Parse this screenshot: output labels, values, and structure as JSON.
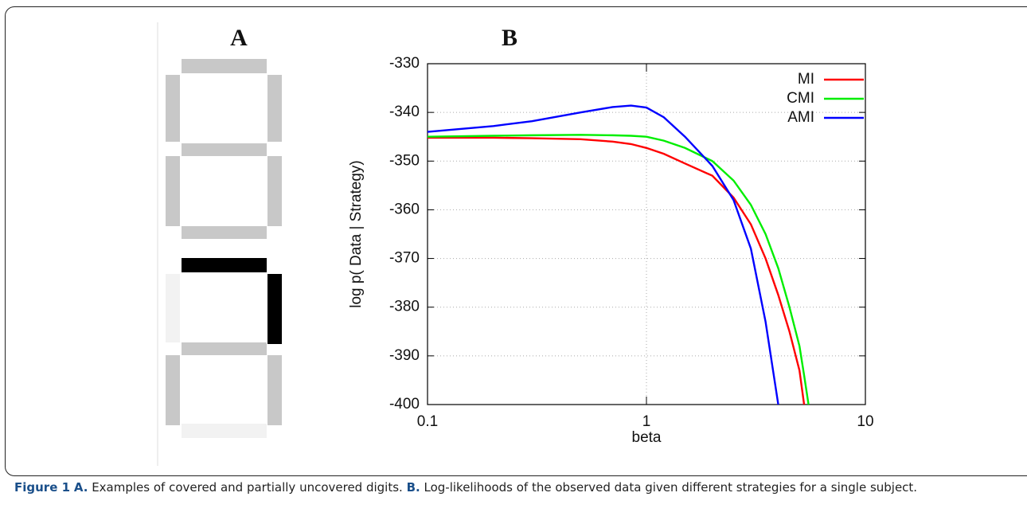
{
  "panels": {
    "a_label": "A",
    "b_label": "B"
  },
  "chart_data": {
    "type": "line",
    "xlabel": "beta",
    "ylabel": "log p( Data | Strategy)",
    "log_x": true,
    "grid": true,
    "legend": "upper right",
    "xlim": [
      0.1,
      10
    ],
    "xticks": [
      0.1,
      1,
      10
    ],
    "ylim": [
      -400,
      -330
    ],
    "yticks": [
      -330,
      -340,
      -350,
      -360,
      -370,
      -380,
      -390,
      -400
    ],
    "x": [
      0.1,
      0.2,
      0.3,
      0.5,
      0.7,
      0.85,
      1,
      1.2,
      1.5,
      2,
      2.5,
      3,
      3.5,
      4,
      4.5,
      5,
      5.25,
      5.5
    ],
    "series": [
      {
        "name": "MI",
        "color": "#ff0000",
        "values": [
          -345.2,
          -345.2,
          -345.3,
          -345.5,
          -346,
          -346.5,
          -347.3,
          -348.5,
          -350.5,
          -353,
          -357.5,
          -363,
          -370,
          -377.5,
          -385,
          -393,
          -400,
          null
        ]
      },
      {
        "name": "CMI",
        "color": "#00ee00",
        "values": [
          -345,
          -344.8,
          -344.7,
          -344.6,
          -344.7,
          -344.8,
          -345,
          -345.8,
          -347.3,
          -350,
          -354,
          -359,
          -365,
          -372,
          -380,
          -388,
          -394,
          -400
        ]
      },
      {
        "name": "AMI",
        "color": "#0000ff",
        "values": [
          -344,
          -342.8,
          -341.8,
          -340,
          -338.9,
          -338.6,
          -339,
          -341,
          -345,
          -351,
          -358,
          -368,
          -383,
          -400,
          null,
          null,
          null,
          null
        ]
      }
    ]
  },
  "caption": {
    "label": "Figure 1",
    "a": "A.",
    "a_text": "Examples of covered and partially uncovered digits.",
    "b": "B.",
    "b_text": "Log-likelihoods of the observed data given different strategies for a single subject."
  }
}
